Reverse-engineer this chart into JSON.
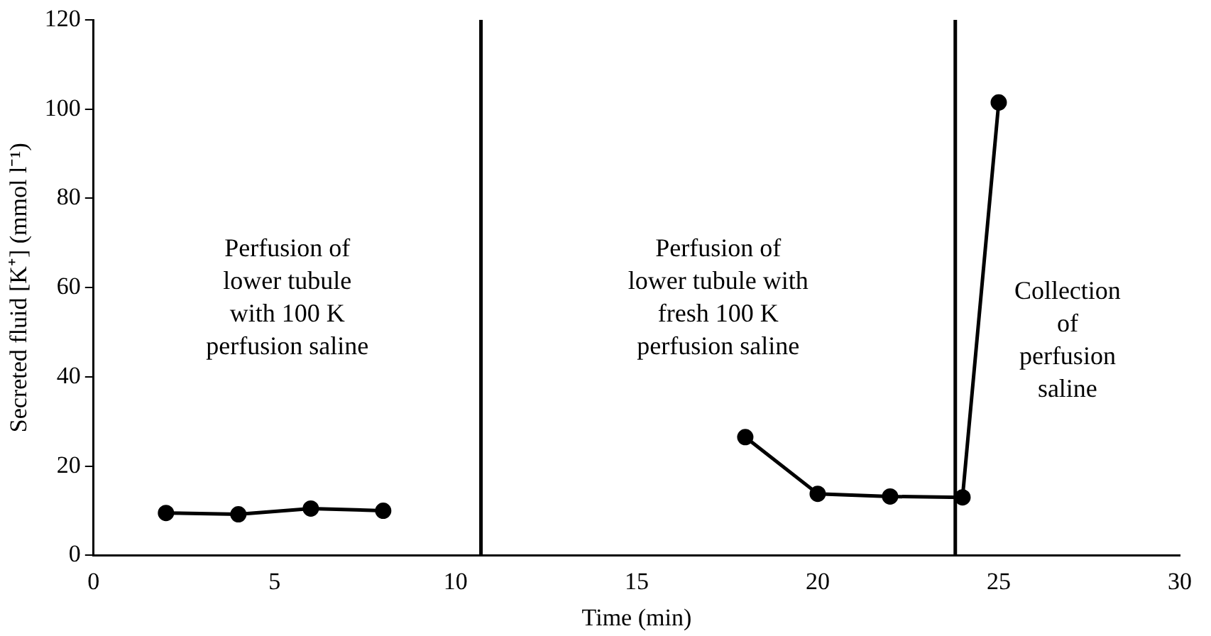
{
  "chart_data": {
    "type": "line",
    "xlabel": "Time (min)",
    "ylabel": "Secreted fluid [K⁺] (mmol l⁻¹)",
    "xlim": [
      0,
      30
    ],
    "xticks": [
      0,
      5,
      10,
      15,
      20,
      25,
      30
    ],
    "ylim": [
      0,
      120
    ],
    "yticks": [
      0,
      20,
      40,
      60,
      80,
      100,
      120
    ],
    "series": [
      {
        "color": "#000000",
        "x": [
          2,
          4,
          6,
          8
        ],
        "values": [
          9.5,
          9.2,
          10.5,
          10
        ]
      },
      {
        "color": "#000000",
        "x": [
          18,
          20,
          22,
          24,
          25
        ],
        "values": [
          26.5,
          13.8,
          13.2,
          13,
          101.5
        ]
      }
    ],
    "ref_lines": [
      {
        "axis": "x",
        "value": 10.7,
        "color": "#000000"
      },
      {
        "axis": "x",
        "value": 23.8,
        "color": "#000000"
      }
    ],
    "annotations": [
      "Perfusion of\nlower tubule\nwith 100 K\nperfusion saline",
      "Perfusion of\nlower tubule with\nfresh 100 K\nperfusion saline",
      "Collection\nof\nperfusion\nsaline"
    ],
    "marker": "circle",
    "line_style": "solid",
    "grid": false,
    "legend": false
  }
}
